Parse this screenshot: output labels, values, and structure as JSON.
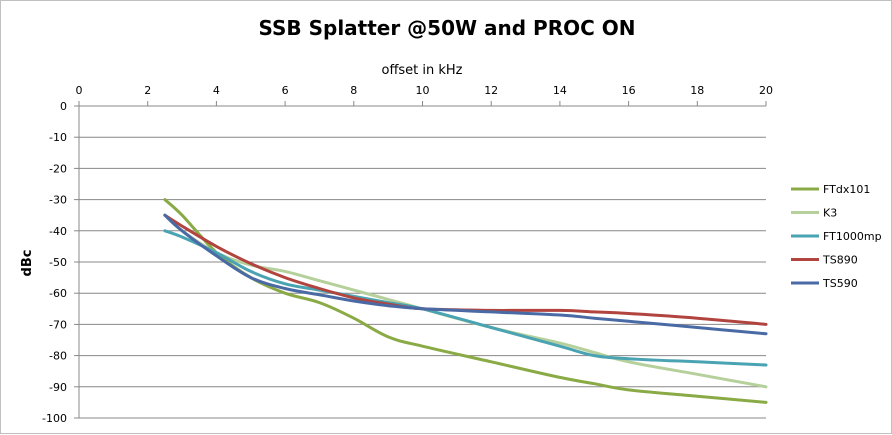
{
  "chart_data": {
    "type": "line",
    "title": "SSB Splatter @50W and PROC ON",
    "xlabel": "offset in kHz",
    "ylabel": "dBc",
    "xlim": [
      0,
      20
    ],
    "ylim": [
      -100,
      0
    ],
    "x_ticks": [
      0,
      2,
      4,
      6,
      8,
      10,
      12,
      14,
      16,
      18,
      20
    ],
    "y_ticks": [
      0,
      -10,
      -20,
      -30,
      -40,
      -50,
      -60,
      -70,
      -80,
      -90,
      -100
    ],
    "x_axis_position": "top",
    "grid": "horizontal",
    "legend": "right",
    "series": [
      {
        "name": "FTdx101",
        "color": "#8aaa45",
        "x": [
          2.5,
          3,
          4,
          5,
          6,
          7,
          8,
          9,
          10,
          12,
          14,
          15,
          16,
          18,
          20
        ],
        "y": [
          -30,
          -35,
          -47,
          -55,
          -60,
          -63,
          -68,
          -74,
          -77,
          -82,
          -87,
          -89,
          -91,
          -93,
          -95
        ]
      },
      {
        "name": "K3",
        "color": "#b5d09b",
        "x": [
          2.5,
          3,
          4,
          5,
          6,
          7,
          8,
          9,
          10,
          12,
          14,
          15,
          16,
          18,
          20
        ],
        "y": [
          -35,
          -40,
          -47,
          -51,
          -53,
          -56,
          -59,
          -62,
          -65,
          -71,
          -76,
          -79,
          -82,
          -86,
          -90
        ]
      },
      {
        "name": "FT1000mp",
        "color": "#4aa3b2",
        "x": [
          2.5,
          3,
          4,
          5,
          6,
          7,
          8,
          9,
          10,
          12,
          14,
          15,
          16,
          18,
          20
        ],
        "y": [
          -40,
          -42,
          -47,
          -53,
          -57,
          -59,
          -61,
          -63,
          -65,
          -71,
          -77,
          -80,
          -81,
          -82,
          -83
        ]
      },
      {
        "name": "TS890",
        "color": "#b24440",
        "x": [
          2.5,
          3,
          4,
          5,
          6,
          7,
          8,
          9,
          10,
          12,
          14,
          15,
          16,
          18,
          20
        ],
        "y": [
          -35,
          -38.5,
          -45,
          -50.5,
          -55,
          -58.5,
          -61.5,
          -63.5,
          -65,
          -65.5,
          -65.5,
          -66,
          -66.5,
          -68,
          -70
        ]
      },
      {
        "name": "TS590",
        "color": "#4a6aa5",
        "x": [
          2.5,
          3,
          4,
          5,
          6,
          7,
          8,
          9,
          10,
          12,
          14,
          15,
          16,
          18,
          20
        ],
        "y": [
          -35,
          -40,
          -48,
          -55,
          -58.5,
          -60.5,
          -62.5,
          -64,
          -65,
          -66,
          -67,
          -68,
          -69,
          -71,
          -73
        ]
      }
    ]
  }
}
